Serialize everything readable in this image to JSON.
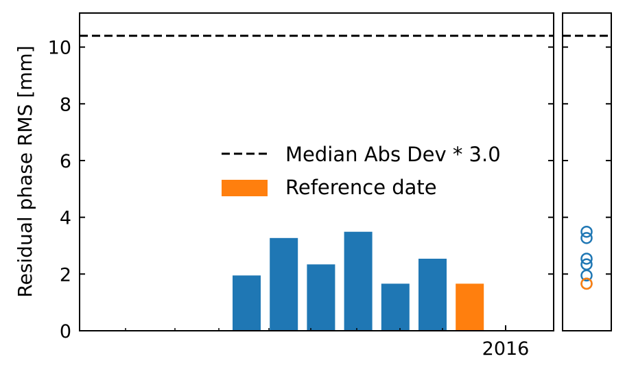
{
  "chart_data": {
    "type": "bar",
    "ylabel": "Residual phase RMS [mm]",
    "xlabel": "",
    "ylim": [
      0,
      11.2
    ],
    "yticks": [
      0,
      2,
      4,
      6,
      8,
      10
    ],
    "xtick_label": "2016",
    "bars": [
      {
        "value": 1.95,
        "reference": false
      },
      {
        "value": 3.27,
        "reference": false
      },
      {
        "value": 2.34,
        "reference": false
      },
      {
        "value": 3.49,
        "reference": false
      },
      {
        "value": 1.66,
        "reference": false
      },
      {
        "value": 2.54,
        "reference": false
      },
      {
        "value": 1.66,
        "reference": true
      }
    ],
    "threshold": {
      "value": 10.4,
      "label": "Median Abs Dev * 3.0"
    },
    "legend": {
      "placement": "center-right",
      "threshold_label": "Median Abs Dev * 3.0",
      "reference_label": "Reference date"
    },
    "side_panel_points": [
      {
        "value": 3.49,
        "reference": false
      },
      {
        "value": 3.27,
        "reference": false
      },
      {
        "value": 2.54,
        "reference": false
      },
      {
        "value": 2.34,
        "reference": false
      },
      {
        "value": 1.95,
        "reference": false
      },
      {
        "value": 1.66,
        "reference": false
      },
      {
        "value": 1.66,
        "reference": true
      }
    ],
    "colors": {
      "bar": "#1f77b4",
      "reference": "#ff7f0e",
      "threshold": "#000000"
    },
    "grid": false
  }
}
